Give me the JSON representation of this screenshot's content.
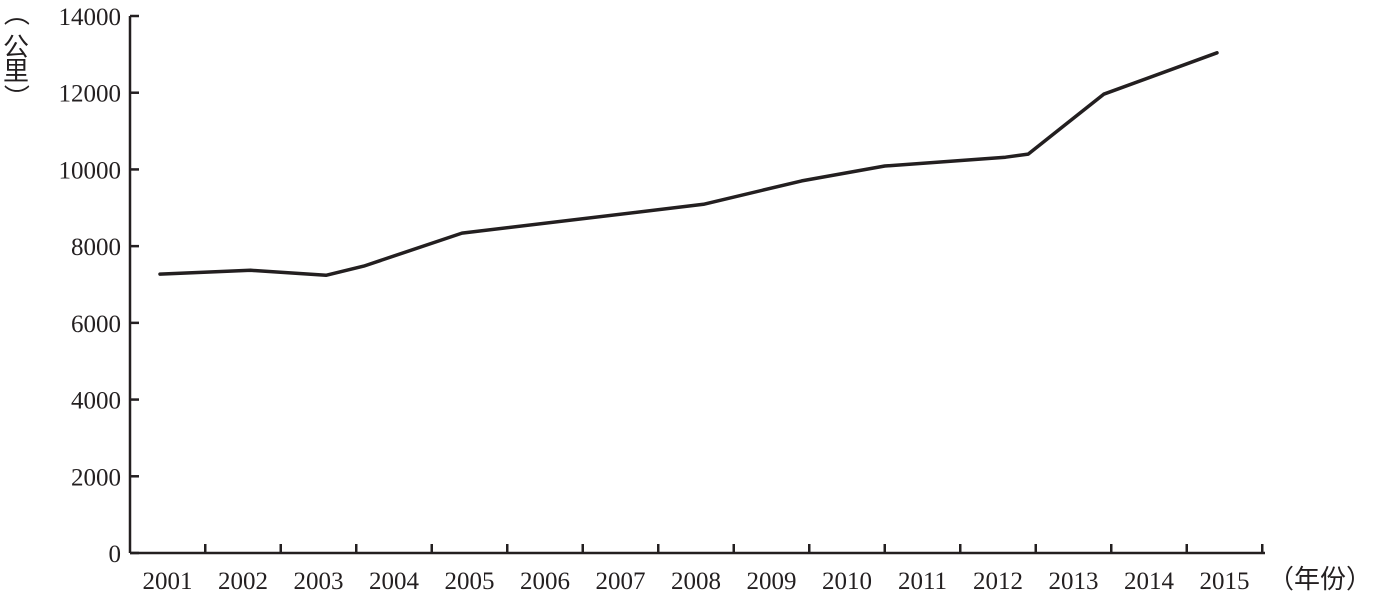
{
  "chart_data": {
    "type": "line",
    "title": "",
    "xlabel": "（年份）",
    "ylabel": "（公里）",
    "ylabel_chars": [
      "（",
      "公",
      "里",
      "）"
    ],
    "categories": [
      "2001",
      "2002",
      "2003",
      "2004",
      "2005",
      "2006",
      "2007",
      "2008",
      "2009",
      "2010",
      "2011",
      "2012",
      "2013",
      "2014",
      "2015"
    ],
    "y_ticks": [
      "0",
      "2000",
      "4000",
      "6000",
      "8000",
      "10000",
      "12000",
      "14000"
    ],
    "y_tick_values": [
      0,
      2000,
      4000,
      6000,
      8000,
      10000,
      12000,
      14000
    ],
    "ylim": [
      0,
      14000
    ],
    "grid": false,
    "legend": "none",
    "series": [
      {
        "color": "#231f20",
        "points": [
          {
            "x": 2000.9,
            "y": 7270
          },
          {
            "x": 2002.1,
            "y": 7370
          },
          {
            "x": 2003.1,
            "y": 7240
          },
          {
            "x": 2003.6,
            "y": 7480
          },
          {
            "x": 2004.9,
            "y": 8340
          },
          {
            "x": 2008.1,
            "y": 9090
          },
          {
            "x": 2009.4,
            "y": 9700
          },
          {
            "x": 2010.5,
            "y": 10090
          },
          {
            "x": 2012.1,
            "y": 10320
          },
          {
            "x": 2012.4,
            "y": 10400
          },
          {
            "x": 2013.4,
            "y": 11960
          },
          {
            "x": 2014.9,
            "y": 13040
          }
        ]
      }
    ]
  }
}
